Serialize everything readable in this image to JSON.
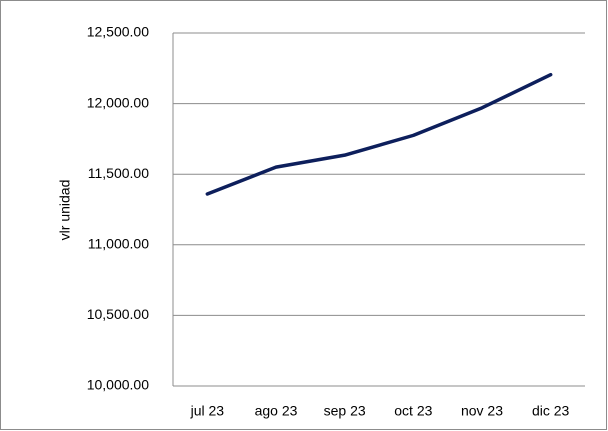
{
  "chart_data": {
    "type": "line",
    "y_label": "vlr unidad",
    "categories": [
      "jul 23",
      "ago 23",
      "sep 23",
      "oct 23",
      "nov 23",
      "dic 23"
    ],
    "series": [
      {
        "name": "vlr unidad",
        "color": "#0d1f5c",
        "values": [
          11360,
          11550,
          11635,
          11775,
          11970,
          12205
        ]
      }
    ],
    "ylim": [
      10000,
      12500
    ],
    "yticks": [
      {
        "value": 10000,
        "label": "10,000.00"
      },
      {
        "value": 10500,
        "label": "10,500.00"
      },
      {
        "value": 11000,
        "label": "11,000.00"
      },
      {
        "value": 11500,
        "label": "11,500.00"
      },
      {
        "value": 12000,
        "label": "12,000.00"
      },
      {
        "value": 12500,
        "label": "12,500.00"
      }
    ],
    "grid": true
  }
}
